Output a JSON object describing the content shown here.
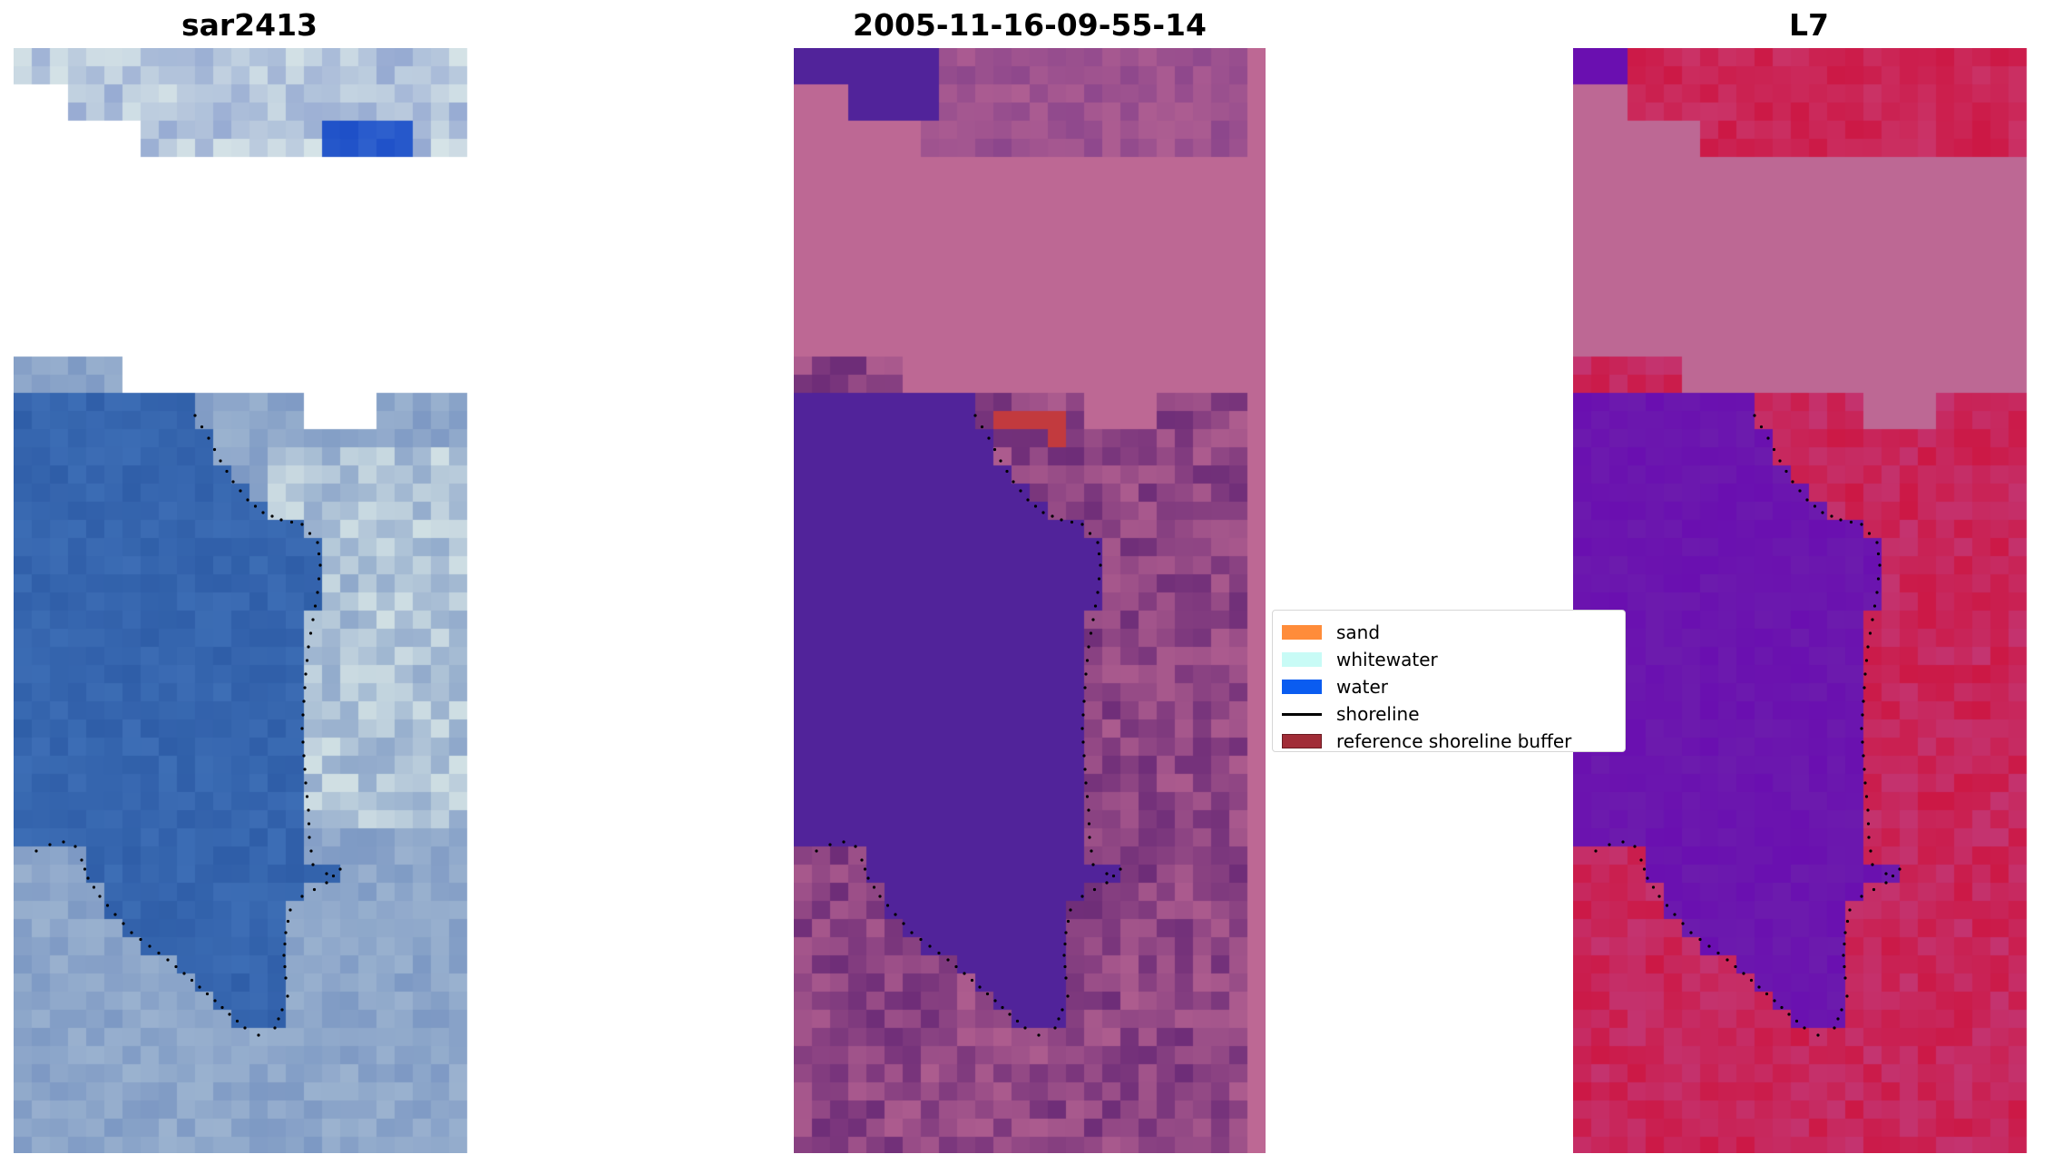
{
  "panels": [
    {
      "title": "sar2413",
      "colormap": "rgb"
    },
    {
      "title": "2005-11-16-09-55-14",
      "colormap": "classified"
    },
    {
      "title": "L7",
      "colormap": "mndwi"
    }
  ],
  "legend": {
    "items": [
      {
        "label": "sand",
        "color": "#ff8c3a",
        "kind": "patch"
      },
      {
        "label": "whitewater",
        "color": "#c8fbf6",
        "kind": "patch"
      },
      {
        "label": "water",
        "color": "#0a5cf0",
        "kind": "patch"
      },
      {
        "label": "shoreline",
        "color": "#000000",
        "kind": "line"
      },
      {
        "label": "reference shoreline buffer",
        "color": "#a12c37",
        "kind": "patch"
      }
    ]
  },
  "colors": {
    "masked": "#bd6894",
    "water_class": "#51239a",
    "buffer_red": "#c23a3e",
    "sar_water": "#2f5ea8",
    "sar_bright": "#e6f2ec",
    "mndwi_high": "#6a0fb0",
    "mndwi_low": "#cc1845"
  }
}
